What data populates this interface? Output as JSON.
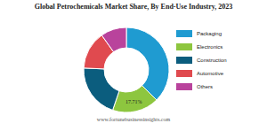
{
  "chart_data": {
    "type": "donut",
    "title": "Global Petrochemicals Market Share, By End-Use Industry, 2023",
    "categories": [
      "Packaging",
      "Electronics",
      "Construction",
      "Automotive",
      "Others"
    ],
    "values": [
      37.5,
      17.71,
      20.5,
      14.5,
      9.79
    ],
    "value_labels": [
      null,
      "17.71%",
      null,
      null,
      null
    ],
    "colors": [
      "#1f9bd1",
      "#8dc63f",
      "#0b5d7e",
      "#e04a4f",
      "#b9439c"
    ],
    "legend": "right",
    "annotations": [
      "www.fortunebusinessinsights.com"
    ]
  }
}
